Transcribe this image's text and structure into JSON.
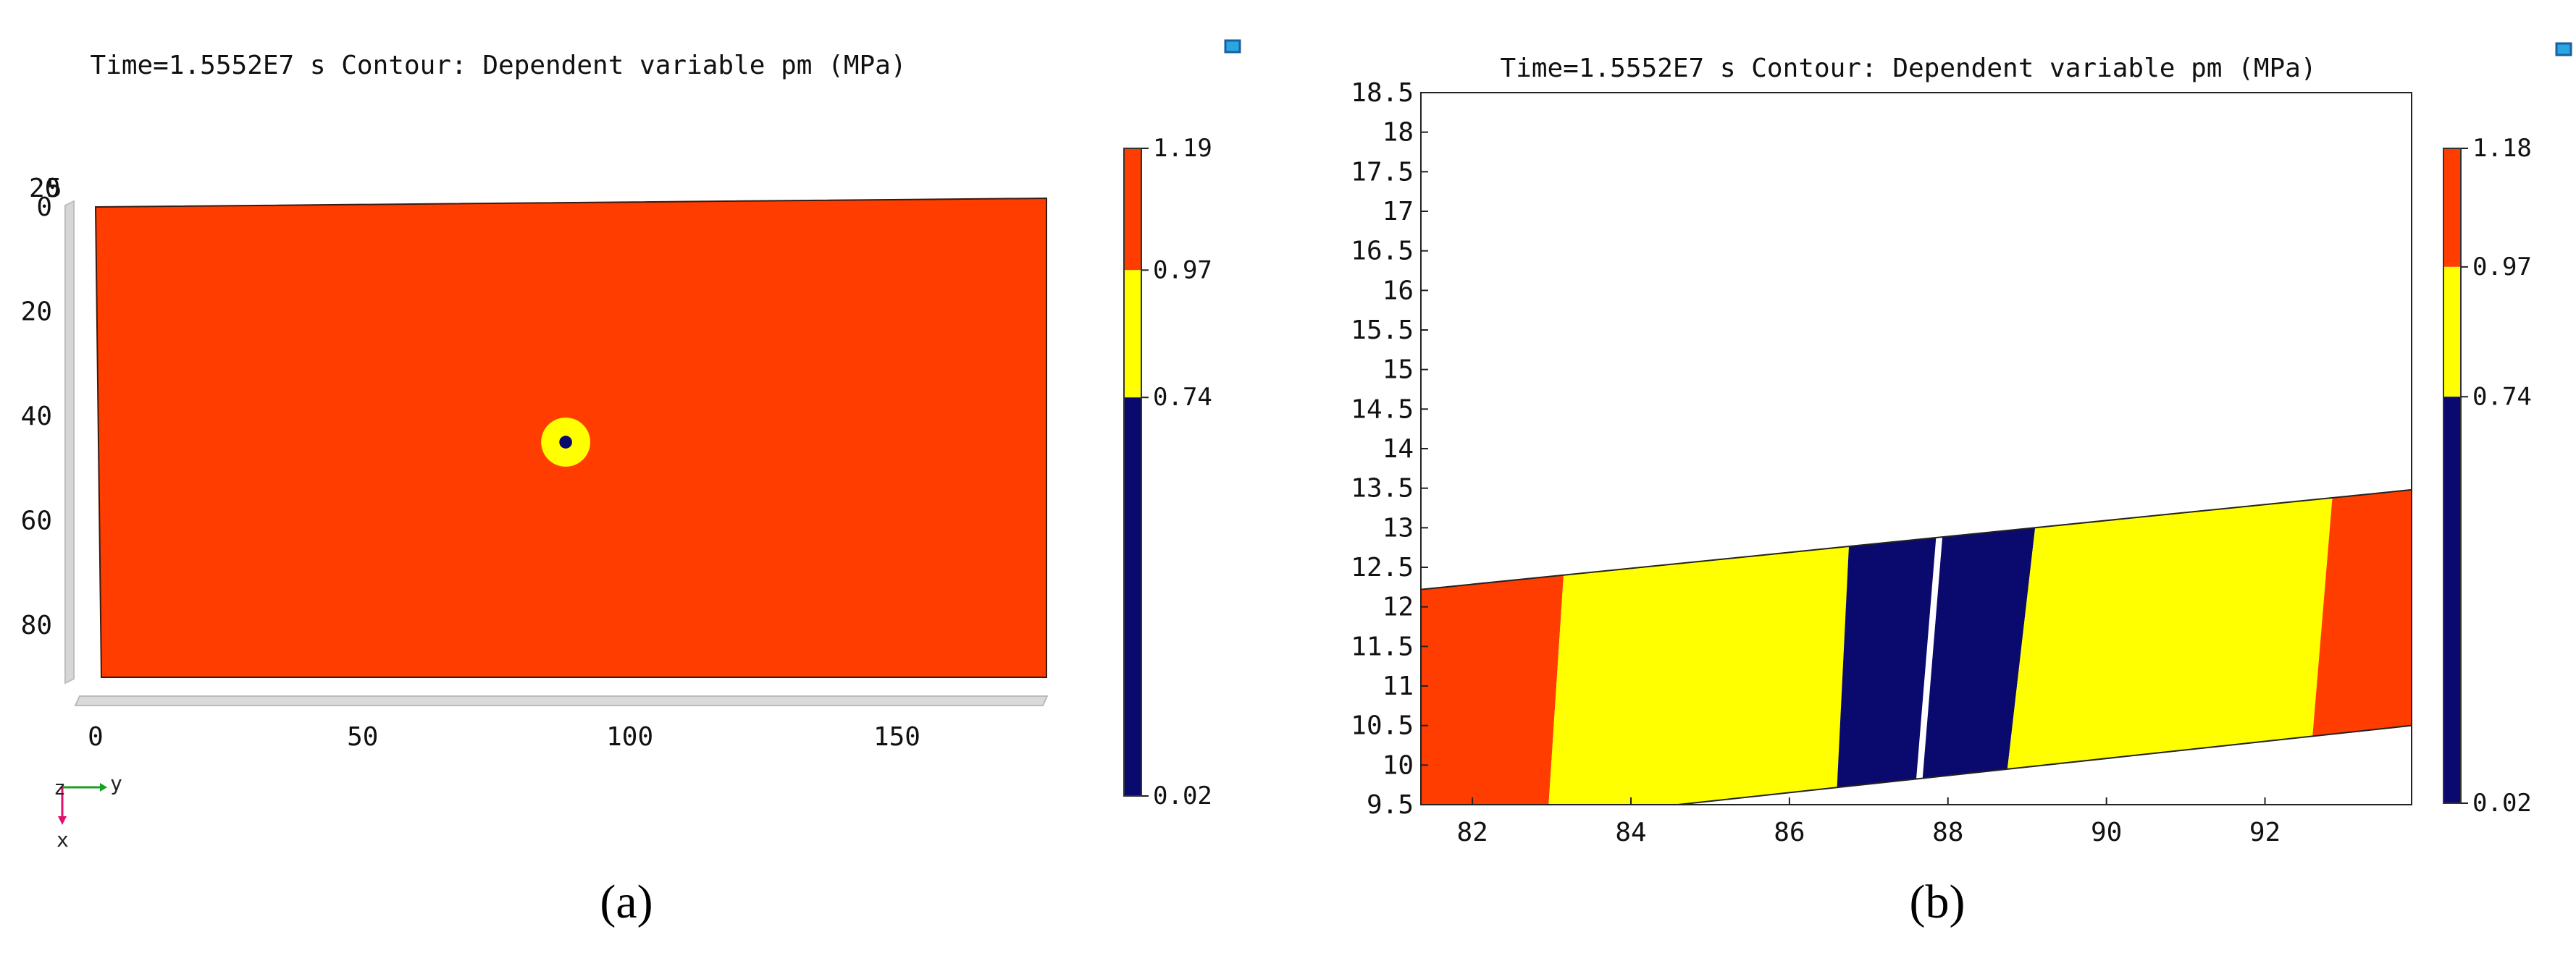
{
  "chart_data": [
    {
      "panel_label": "(a)",
      "type": "heatmap",
      "title": "Time=1.5552E7 s   Contour: Dependent variable pm (MPa)",
      "x_axis": {
        "ticks": [
          0,
          50,
          100,
          150
        ],
        "range": [
          0,
          178
        ]
      },
      "y_axis": {
        "ticks": [
          0,
          20,
          40,
          60,
          80
        ],
        "extra_ticks": [
          "20",
          "5"
        ],
        "range": [
          0,
          90
        ],
        "inverted": true
      },
      "regions": [
        {
          "name": "matrix",
          "level": 1.19,
          "color": "#ff3d00"
        },
        {
          "name": "ring",
          "level": 0.97,
          "color": "#ffff00",
          "center": [
            88,
            45
          ],
          "radius": 4.6
        },
        {
          "name": "core",
          "level": 0.02,
          "color": "#0a0a6e",
          "center": [
            88,
            45
          ],
          "radius": 1.2
        }
      ],
      "colorbar": {
        "ticks": [
          "1.19",
          "0.97",
          "0.74",
          "0.02"
        ],
        "values": [
          1.19,
          0.97,
          0.74,
          0.02
        ],
        "bands": [
          {
            "from": 0.97,
            "to": 1.19,
            "color": "#ff3d00"
          },
          {
            "from": 0.74,
            "to": 0.97,
            "color": "#ffff00"
          },
          {
            "from": 0.02,
            "to": 0.74,
            "color": "#0a0a6e"
          }
        ]
      },
      "triad": {
        "z": "z",
        "y": "y",
        "x": "x"
      }
    },
    {
      "panel_label": "(b)",
      "type": "heatmap",
      "title": "Time=1.5552E7 s   Contour: Dependent variable pm (MPa)",
      "x_axis": {
        "ticks": [
          82,
          84,
          86,
          88,
          90,
          92
        ],
        "range": [
          81.35,
          93.85
        ]
      },
      "y_axis": {
        "ticks": [
          "9.5",
          "10",
          "10.5",
          "11",
          "11.5",
          "12",
          "12.5",
          "13",
          "13.5",
          "14",
          "14.5",
          "15",
          "15.5",
          "16",
          "16.5",
          "17",
          "17.5",
          "18",
          "18.5"
        ],
        "range": [
          9.5,
          18.5
        ]
      },
      "band": {
        "lower_edge": [
          [
            81.35,
            9.15
          ],
          [
            93.85,
            10.5
          ]
        ],
        "upper_edge": [
          [
            81.35,
            12.22
          ],
          [
            93.85,
            13.48
          ]
        ]
      },
      "strips": [
        {
          "level": 1.18,
          "color": "#ff3d00",
          "from_x": [
            81.35,
            81.35
          ],
          "to_x": [
            82.95,
            83.15
          ]
        },
        {
          "level": 0.97,
          "color": "#ffff00",
          "from_x": [
            82.95,
            83.15
          ],
          "to_x": [
            86.6,
            86.75
          ]
        },
        {
          "level": 0.02,
          "color": "#0a0a6e",
          "from_x": [
            86.6,
            86.75
          ],
          "to_x": [
            87.6,
            87.85
          ]
        },
        {
          "level": 0.02,
          "color": "#0a0a6e",
          "from_x": [
            87.68,
            87.93
          ],
          "to_x": [
            88.75,
            89.1
          ]
        },
        {
          "level": 0.97,
          "color": "#ffff00",
          "from_x": [
            88.75,
            89.1
          ],
          "to_x": [
            92.6,
            92.85
          ]
        },
        {
          "level": 1.18,
          "color": "#ff3d00",
          "from_x": [
            92.6,
            92.85
          ],
          "to_x": [
            93.85,
            93.85
          ]
        }
      ],
      "colorbar": {
        "ticks": [
          "1.18",
          "0.97",
          "0.74",
          "0.02"
        ],
        "values": [
          1.18,
          0.97,
          0.74,
          0.02
        ],
        "bands": [
          {
            "from": 0.97,
            "to": 1.18,
            "color": "#ff3d00"
          },
          {
            "from": 0.74,
            "to": 0.97,
            "color": "#ffff00"
          },
          {
            "from": 0.02,
            "to": 0.74,
            "color": "#0a0a6e"
          }
        ]
      }
    }
  ]
}
